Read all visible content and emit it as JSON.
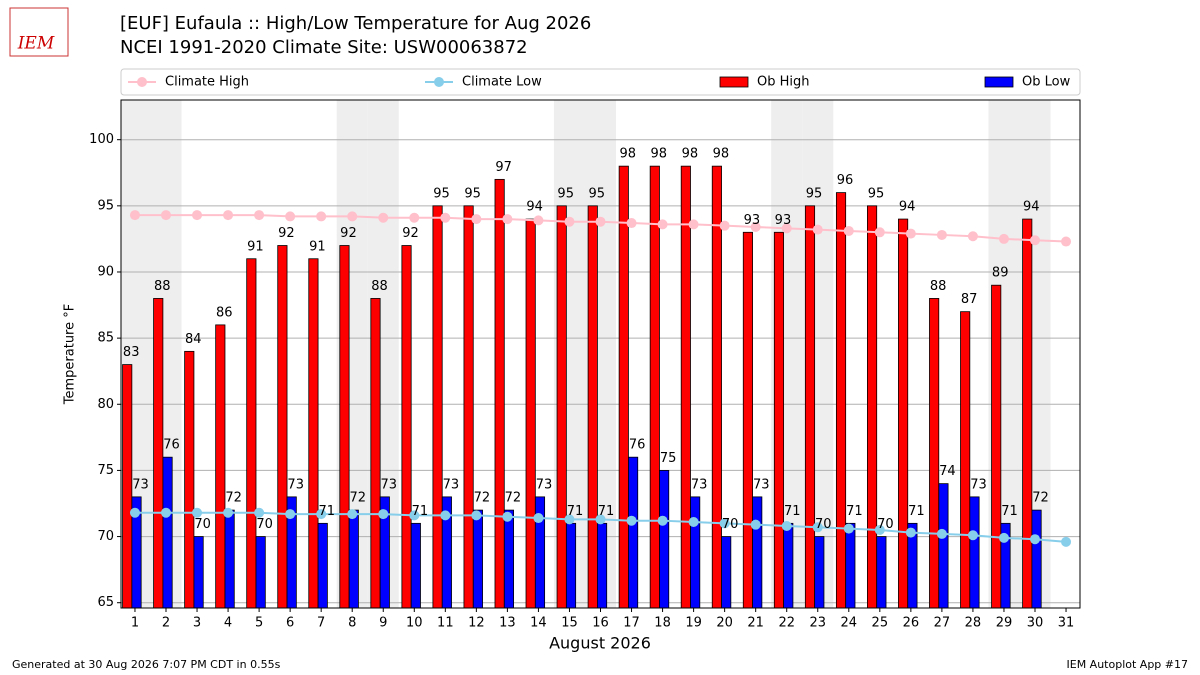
{
  "logo": "IEM",
  "footer_left": "Generated at 30 Aug 2026 7:07 PM CDT in 0.55s",
  "footer_right": "IEM Autoplot App #17",
  "chart_data": {
    "type": "bar",
    "title": "[EUF] Eufaula :: High/Low Temperature for Aug 2026",
    "subtitle": "NCEI 1991-2020 Climate Site: USW00063872",
    "xlabel": "August 2026",
    "ylabel": "Temperature °F",
    "x": [
      1,
      2,
      3,
      4,
      5,
      6,
      7,
      8,
      9,
      10,
      11,
      12,
      13,
      14,
      15,
      16,
      17,
      18,
      19,
      20,
      21,
      22,
      23,
      24,
      25,
      26,
      27,
      28,
      29,
      30,
      31
    ],
    "xlim": [
      0.55,
      31.45
    ],
    "xticks": [
      1,
      2,
      3,
      4,
      5,
      6,
      7,
      8,
      9,
      10,
      11,
      12,
      13,
      14,
      15,
      16,
      17,
      18,
      19,
      20,
      21,
      22,
      23,
      24,
      25,
      26,
      27,
      28,
      29,
      30,
      31
    ],
    "ylim": [
      64.6,
      103
    ],
    "yticks": [
      65,
      70,
      75,
      80,
      85,
      90,
      95,
      100
    ],
    "grid": true,
    "legend": "top",
    "shaded_days": [
      1,
      2,
      8,
      9,
      15,
      16,
      22,
      23,
      29,
      30
    ],
    "series": [
      {
        "name": "Climate High",
        "type": "line",
        "color": "#ffc0cb",
        "values": [
          94.3,
          94.3,
          94.3,
          94.3,
          94.3,
          94.2,
          94.2,
          94.2,
          94.1,
          94.1,
          94.1,
          94.0,
          94.0,
          93.9,
          93.8,
          93.8,
          93.7,
          93.6,
          93.6,
          93.5,
          93.4,
          93.3,
          93.2,
          93.1,
          93.0,
          92.9,
          92.8,
          92.7,
          92.5,
          92.4,
          92.3
        ]
      },
      {
        "name": "Climate Low",
        "type": "line",
        "color": "#87ceeb",
        "values": [
          71.8,
          71.8,
          71.8,
          71.8,
          71.8,
          71.7,
          71.7,
          71.7,
          71.7,
          71.6,
          71.6,
          71.6,
          71.5,
          71.4,
          71.3,
          71.3,
          71.2,
          71.2,
          71.1,
          71.0,
          70.9,
          70.8,
          70.7,
          70.6,
          70.5,
          70.3,
          70.2,
          70.1,
          69.9,
          69.8,
          69.6
        ]
      },
      {
        "name": "Ob High",
        "type": "bar",
        "color": "#ff0000",
        "values": [
          83,
          88,
          84,
          86,
          91,
          92,
          91,
          92,
          88,
          92,
          95,
          95,
          97,
          94,
          95,
          95,
          98,
          98,
          98,
          98,
          93,
          93,
          95,
          96,
          95,
          94,
          88,
          87,
          89,
          94,
          null
        ]
      },
      {
        "name": "Ob Low",
        "type": "bar",
        "color": "#0000ff",
        "values": [
          73,
          76,
          70,
          72,
          70,
          73,
          71,
          72,
          73,
          71,
          73,
          72,
          72,
          73,
          71,
          71,
          76,
          75,
          73,
          70,
          73,
          71,
          70,
          71,
          70,
          71,
          74,
          73,
          71,
          72,
          null
        ]
      }
    ]
  }
}
